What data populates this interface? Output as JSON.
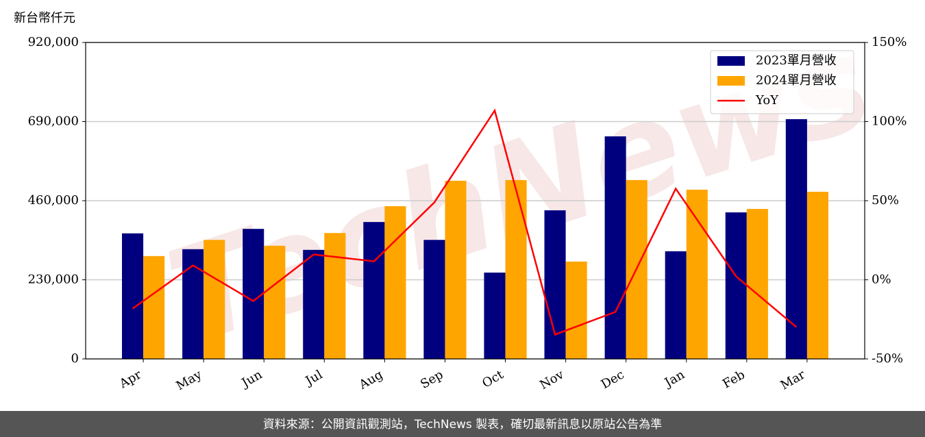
{
  "chart_data": {
    "type": "bar_line",
    "y_label": "新台幣仟元",
    "watermark": "TechNews",
    "source": "資料來源：公開資訊觀測站，TechNews 製表，確切最新訊息以原站公告為準",
    "categories": [
      "Apr",
      "May",
      "Jun",
      "Jul",
      "Aug",
      "Sep",
      "Oct",
      "Nov",
      "Dec",
      "Jan",
      "Feb",
      "Mar"
    ],
    "series": [
      {
        "name": "2023單月營收",
        "color": "#00007f",
        "type": "bar",
        "values": [
          365000,
          319000,
          378000,
          317000,
          398000,
          346000,
          251000,
          432000,
          647000,
          313000,
          426000,
          697000
        ]
      },
      {
        "name": "2024單月營收",
        "color": "#ffa500",
        "type": "bar",
        "values": [
          299000,
          346000,
          329000,
          366000,
          444000,
          518000,
          520000,
          283000,
          520000,
          492000,
          436000,
          486000
        ]
      },
      {
        "name": "YoY",
        "color": "#ff0000",
        "type": "line",
        "axis": "y2",
        "values": [
          -18.2,
          9.1,
          -13.4,
          16,
          11.7,
          48.9,
          107,
          -34.6,
          -20.3,
          57.6,
          2.2,
          -29.9
        ]
      }
    ],
    "ylim": [
      0,
      920000
    ],
    "yticks": [
      0,
      {
        "value": 230000,
        "label": "230,000"
      },
      {
        "value": 460000,
        "label": "460,000"
      },
      {
        "value": 690000,
        "label": "690,000"
      },
      {
        "value": 920000,
        "label": "920,000"
      }
    ],
    "y2lim": [
      -50,
      150
    ],
    "y2ticks": [
      {
        "value": -50,
        "label": "-50%"
      },
      {
        "value": 0,
        "label": "0%"
      },
      {
        "value": 50,
        "label": "50%"
      },
      {
        "value": 100,
        "label": "100%"
      },
      {
        "value": 150,
        "label": "150%"
      }
    ],
    "grid": true,
    "legend": "upper right"
  }
}
